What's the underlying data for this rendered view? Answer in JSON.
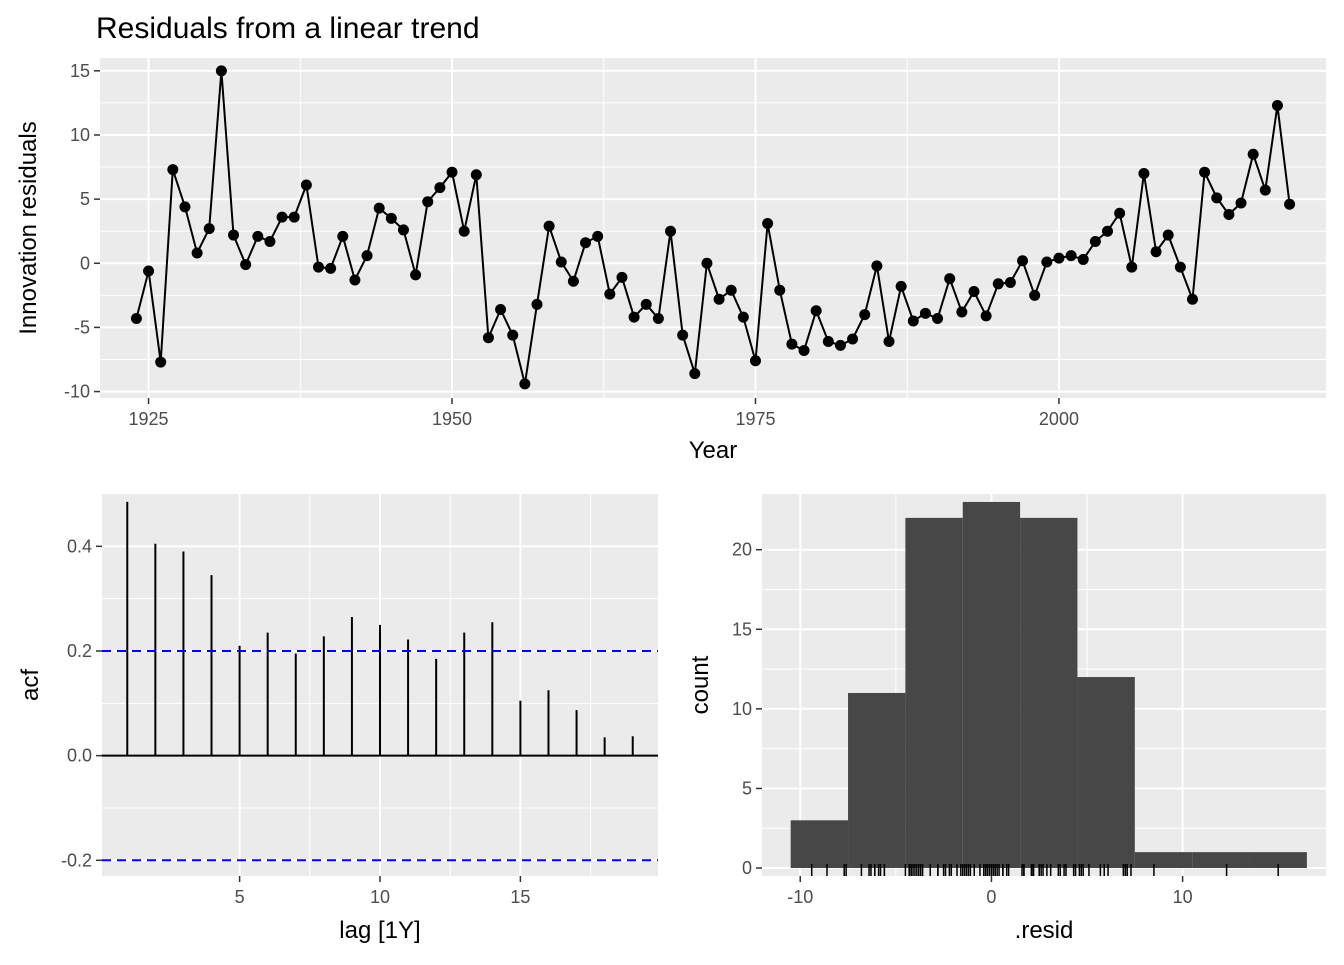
{
  "chart_data": [
    {
      "id": "residuals",
      "type": "line",
      "title": "Residuals from a linear trend",
      "xlabel": "Year",
      "ylabel": "Innovation residuals",
      "xlim": [
        1921,
        2022
      ],
      "ylim": [
        -10.5,
        16
      ],
      "x_ticks": [
        1925,
        1950,
        1975,
        2000
      ],
      "y_ticks": [
        -10,
        -5,
        0,
        5,
        10,
        15
      ],
      "grid": true,
      "markers": true,
      "series": [
        {
          "x": [
            1924,
            1925,
            1926,
            1927,
            1928,
            1929,
            1930,
            1931,
            1932,
            1933,
            1934,
            1935,
            1936,
            1937,
            1938,
            1939,
            1940,
            1941,
            1942,
            1943,
            1944,
            1945,
            1946,
            1947,
            1948,
            1949,
            1950,
            1951,
            1952,
            1953,
            1954,
            1955,
            1956,
            1957,
            1958,
            1959,
            1960,
            1961,
            1962,
            1963,
            1964,
            1965,
            1966,
            1967,
            1968,
            1969,
            1970,
            1971,
            1972,
            1973,
            1974,
            1975,
            1976,
            1977,
            1978,
            1979,
            1980,
            1981,
            1982,
            1983,
            1984,
            1985,
            1986,
            1987,
            1988,
            1989,
            1990,
            1991,
            1992,
            1993,
            1994,
            1995,
            1996,
            1997,
            1998,
            1999,
            2000,
            2001,
            2002,
            2003,
            2004,
            2005,
            2006,
            2007,
            2008,
            2009,
            2010,
            2011,
            2012,
            2013,
            2014,
            2015,
            2016,
            2017,
            2018,
            2019
          ],
          "y": [
            -4.3,
            -0.6,
            -7.7,
            7.3,
            4.4,
            0.8,
            2.7,
            15.0,
            2.2,
            -0.1,
            2.1,
            1.7,
            3.6,
            3.6,
            6.1,
            -0.3,
            -0.4,
            2.1,
            -1.3,
            0.6,
            4.3,
            3.5,
            2.6,
            -0.9,
            4.8,
            5.9,
            7.1,
            2.5,
            6.9,
            -5.8,
            -3.6,
            -5.6,
            -9.4,
            -3.2,
            2.9,
            0.1,
            -1.4,
            1.6,
            2.1,
            -2.4,
            -1.1,
            -4.2,
            -3.2,
            -4.3,
            2.5,
            -5.6,
            -8.6,
            0.0,
            -2.8,
            -2.1,
            -4.2,
            -7.6,
            3.1,
            -2.1,
            -6.3,
            -6.8,
            -3.7,
            -6.1,
            -6.4,
            -5.9,
            -4.0,
            -0.2,
            -6.1,
            -1.8,
            -4.5,
            -3.9,
            -4.3,
            -1.2,
            -3.8,
            -2.2,
            -4.1,
            -1.6,
            -1.5,
            0.2,
            -2.5,
            0.1,
            0.4,
            0.6,
            0.3,
            1.7,
            2.5,
            3.9,
            -0.3,
            7.0,
            0.9,
            2.2,
            -0.3,
            -2.8,
            7.1,
            5.1,
            3.8,
            4.7,
            8.5,
            5.7,
            12.3,
            4.6
          ]
        }
      ]
    },
    {
      "id": "acf",
      "type": "bar",
      "xlabel": "lag [1Y]",
      "ylabel": "acf",
      "xlim": [
        0.1,
        19.9
      ],
      "ylim": [
        -0.23,
        0.5
      ],
      "x_ticks": [
        5,
        10,
        15
      ],
      "y_ticks": [
        -0.2,
        0.0,
        0.2,
        0.4
      ],
      "grid": true,
      "lags": [
        1,
        2,
        3,
        4,
        5,
        6,
        7,
        8,
        9,
        10,
        11,
        12,
        13,
        14,
        15,
        16,
        17,
        18,
        19
      ],
      "values": [
        0.485,
        0.405,
        0.39,
        0.345,
        0.21,
        0.235,
        0.195,
        0.228,
        0.265,
        0.25,
        0.222,
        0.185,
        0.235,
        0.255,
        0.105,
        0.125,
        0.087,
        0.035,
        0.037
      ],
      "bounds": [
        0.2,
        -0.2
      ],
      "bound_color": "#0000ff"
    },
    {
      "id": "histogram",
      "type": "bar",
      "xlabel": ".resid",
      "ylabel": "count",
      "xlim": [
        -12,
        17.5
      ],
      "ylim": [
        -0.5,
        23.5
      ],
      "x_ticks": [
        -10,
        0,
        10
      ],
      "y_ticks": [
        0,
        5,
        10,
        15,
        20
      ],
      "grid": true,
      "bin_edges": [
        -10.5,
        -7.5,
        -4.5,
        -1.5,
        1.5,
        4.5,
        7.5,
        10.5,
        13.5,
        16.5
      ],
      "counts": [
        3,
        11,
        22,
        23,
        22,
        12,
        1,
        1,
        1
      ],
      "bar_color": "#474747",
      "rug": true
    }
  ]
}
